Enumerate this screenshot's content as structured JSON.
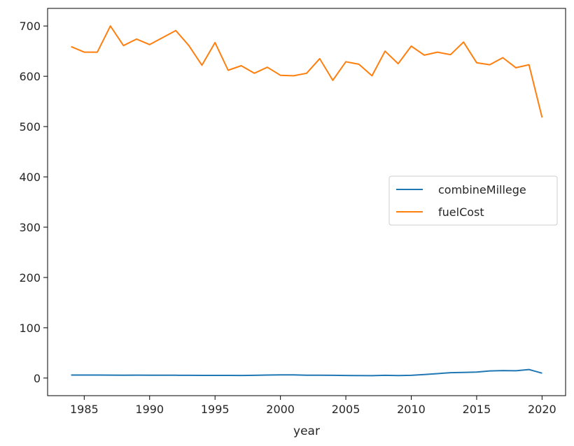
{
  "chart_data": {
    "type": "line",
    "xlabel": "year",
    "ylabel": "",
    "xlim": [
      1982.2,
      2021.8
    ],
    "ylim": [
      -35,
      735
    ],
    "xticks": [
      1985,
      1990,
      1995,
      2000,
      2005,
      2010,
      2015,
      2020
    ],
    "yticks": [
      0,
      100,
      200,
      300,
      400,
      500,
      600,
      700
    ],
    "grid": false,
    "legend_position": "center-right",
    "x": [
      1984,
      1985,
      1986,
      1987,
      1988,
      1989,
      1990,
      1991,
      1992,
      1993,
      1994,
      1995,
      1996,
      1997,
      1998,
      1999,
      2000,
      2001,
      2002,
      2003,
      2004,
      2005,
      2006,
      2007,
      2008,
      2009,
      2010,
      2011,
      2012,
      2013,
      2014,
      2015,
      2016,
      2017,
      2018,
      2019,
      2020
    ],
    "series": [
      {
        "name": "combineMillege",
        "color": "#1f77b4",
        "values": [
          6,
          6,
          6,
          5.8,
          5.7,
          5.8,
          5.6,
          5.6,
          5.6,
          5.5,
          5.3,
          5.3,
          5.3,
          5.2,
          5.4,
          6,
          6.4,
          6.4,
          5.7,
          5.7,
          5.4,
          5.2,
          4.9,
          4.7,
          5.4,
          5,
          5.5,
          7.1,
          8.8,
          10.7,
          11.3,
          11.8,
          14.2,
          14.9,
          14.5,
          17,
          9.7
        ]
      },
      {
        "name": "fuelCost",
        "color": "#ff7f0e",
        "values": [
          659,
          648,
          648,
          700,
          661,
          674,
          663,
          677,
          691,
          661,
          622,
          667,
          612,
          621,
          606,
          618,
          602,
          601,
          606,
          635,
          592,
          629,
          624,
          601,
          650,
          625,
          660,
          642,
          648,
          643,
          668,
          627,
          623,
          637,
          617,
          623,
          518
        ]
      }
    ]
  }
}
